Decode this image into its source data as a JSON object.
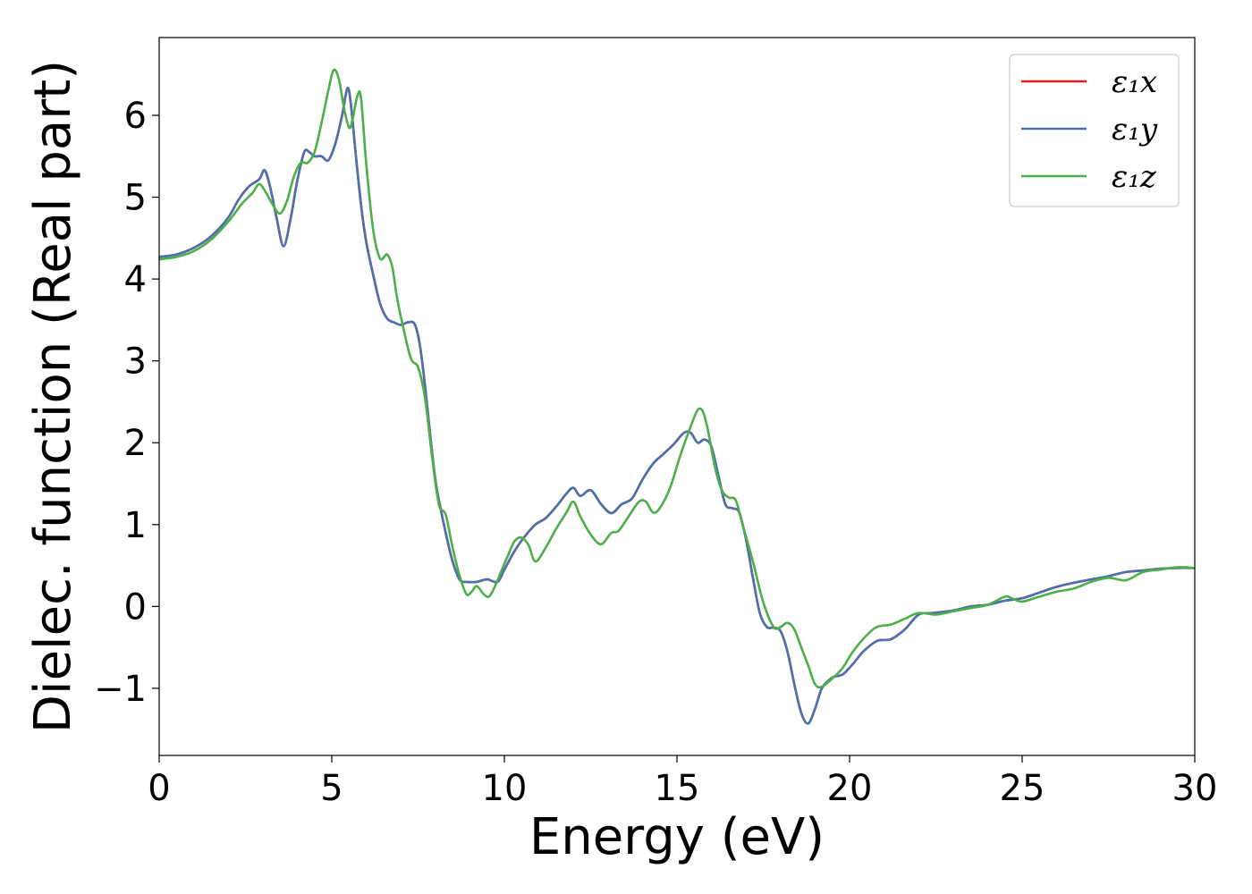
{
  "chart_data": {
    "type": "line",
    "title": "",
    "xlabel": "Energy (eV)",
    "ylabel": "Dielec. function (Real part)",
    "xlim": [
      0,
      30
    ],
    "ylim": [
      -1.82,
      6.95
    ],
    "xticks": [
      0,
      5,
      10,
      15,
      20,
      25,
      30
    ],
    "yticks": [
      -1,
      0,
      1,
      2,
      3,
      4,
      5,
      6
    ],
    "xtick_labels": [
      "0",
      "5",
      "10",
      "15",
      "20",
      "25",
      "30"
    ],
    "ytick_labels": [
      "−1",
      "0",
      "1",
      "2",
      "3",
      "4",
      "5",
      "6"
    ],
    "grid": false,
    "legend_position": "top-right",
    "series": [
      {
        "name": "ε₁x",
        "color": "#e41a1c",
        "x": [
          0,
          0.5,
          1.0,
          1.5,
          2.0,
          2.3,
          2.6,
          2.9,
          3.05,
          3.2,
          3.4,
          3.6,
          3.8,
          4.0,
          4.2,
          4.35,
          4.5,
          4.7,
          4.9,
          5.1,
          5.3,
          5.45,
          5.55,
          5.7,
          5.85,
          6.0,
          6.2,
          6.4,
          6.6,
          6.8,
          7.0,
          7.2,
          7.4,
          7.55,
          7.7,
          7.85,
          8.0,
          8.15,
          8.3,
          8.5,
          8.7,
          8.9,
          9.2,
          9.5,
          9.8,
          10.0,
          10.3,
          10.6,
          10.9,
          11.2,
          11.5,
          11.8,
          12.0,
          12.2,
          12.5,
          12.8,
          13.1,
          13.4,
          13.7,
          14.0,
          14.3,
          14.6,
          14.9,
          15.2,
          15.4,
          15.6,
          15.8,
          16.0,
          16.2,
          16.4,
          16.6,
          16.8,
          17.0,
          17.2,
          17.4,
          17.6,
          17.8,
          18.0,
          18.2,
          18.4,
          18.6,
          18.8,
          19.0,
          19.2,
          19.5,
          19.8,
          20.1,
          20.4,
          20.8,
          21.2,
          21.6,
          22.0,
          22.4,
          23.0,
          23.5,
          24.0,
          24.5,
          25.0,
          25.5,
          26.0,
          26.5,
          27.0,
          27.5,
          28.0,
          28.5,
          29.0,
          29.5,
          30.0
        ],
        "values": [
          4.27,
          4.3,
          4.38,
          4.52,
          4.75,
          4.97,
          5.13,
          5.22,
          5.33,
          5.15,
          4.75,
          4.4,
          4.72,
          5.2,
          5.55,
          5.55,
          5.5,
          5.5,
          5.45,
          5.65,
          6.0,
          6.33,
          6.15,
          5.5,
          4.9,
          4.45,
          4.05,
          3.7,
          3.52,
          3.47,
          3.44,
          3.47,
          3.45,
          3.2,
          2.7,
          2.1,
          1.55,
          1.2,
          0.9,
          0.55,
          0.33,
          0.3,
          0.3,
          0.33,
          0.3,
          0.45,
          0.68,
          0.86,
          1.0,
          1.08,
          1.22,
          1.38,
          1.45,
          1.35,
          1.42,
          1.25,
          1.14,
          1.25,
          1.32,
          1.55,
          1.74,
          1.86,
          1.98,
          2.12,
          2.12,
          2.0,
          2.04,
          1.95,
          1.6,
          1.25,
          1.2,
          1.15,
          0.82,
          0.35,
          -0.08,
          -0.25,
          -0.26,
          -0.3,
          -0.55,
          -0.95,
          -1.3,
          -1.43,
          -1.25,
          -1.0,
          -0.87,
          -0.83,
          -0.7,
          -0.55,
          -0.42,
          -0.4,
          -0.28,
          -0.1,
          -0.08,
          -0.05,
          0.0,
          0.02,
          0.07,
          0.1,
          0.17,
          0.24,
          0.29,
          0.33,
          0.37,
          0.42,
          0.44,
          0.46,
          0.47,
          0.47
        ]
      },
      {
        "name": "ε₁y",
        "color": "#4a72ad",
        "x": [
          0,
          0.5,
          1.0,
          1.5,
          2.0,
          2.3,
          2.6,
          2.9,
          3.05,
          3.2,
          3.4,
          3.6,
          3.8,
          4.0,
          4.2,
          4.35,
          4.5,
          4.7,
          4.9,
          5.1,
          5.3,
          5.45,
          5.55,
          5.7,
          5.85,
          6.0,
          6.2,
          6.4,
          6.6,
          6.8,
          7.0,
          7.2,
          7.4,
          7.55,
          7.7,
          7.85,
          8.0,
          8.15,
          8.3,
          8.5,
          8.7,
          8.9,
          9.2,
          9.5,
          9.8,
          10.0,
          10.3,
          10.6,
          10.9,
          11.2,
          11.5,
          11.8,
          12.0,
          12.2,
          12.5,
          12.8,
          13.1,
          13.4,
          13.7,
          14.0,
          14.3,
          14.6,
          14.9,
          15.2,
          15.4,
          15.6,
          15.8,
          16.0,
          16.2,
          16.4,
          16.6,
          16.8,
          17.0,
          17.2,
          17.4,
          17.6,
          17.8,
          18.0,
          18.2,
          18.4,
          18.6,
          18.8,
          19.0,
          19.2,
          19.5,
          19.8,
          20.1,
          20.4,
          20.8,
          21.2,
          21.6,
          22.0,
          22.4,
          23.0,
          23.5,
          24.0,
          24.5,
          25.0,
          25.5,
          26.0,
          26.5,
          27.0,
          27.5,
          28.0,
          28.5,
          29.0,
          29.5,
          30.0
        ],
        "values": [
          4.27,
          4.3,
          4.38,
          4.52,
          4.75,
          4.97,
          5.13,
          5.22,
          5.33,
          5.15,
          4.75,
          4.4,
          4.72,
          5.2,
          5.55,
          5.55,
          5.5,
          5.5,
          5.45,
          5.65,
          6.0,
          6.33,
          6.15,
          5.5,
          4.9,
          4.45,
          4.05,
          3.7,
          3.52,
          3.47,
          3.44,
          3.47,
          3.45,
          3.2,
          2.7,
          2.1,
          1.55,
          1.2,
          0.9,
          0.55,
          0.33,
          0.3,
          0.3,
          0.33,
          0.3,
          0.45,
          0.68,
          0.86,
          1.0,
          1.08,
          1.22,
          1.38,
          1.45,
          1.35,
          1.42,
          1.25,
          1.14,
          1.25,
          1.32,
          1.55,
          1.74,
          1.86,
          1.98,
          2.12,
          2.12,
          2.0,
          2.04,
          1.95,
          1.6,
          1.25,
          1.2,
          1.15,
          0.82,
          0.35,
          -0.08,
          -0.25,
          -0.26,
          -0.3,
          -0.55,
          -0.95,
          -1.3,
          -1.43,
          -1.25,
          -1.0,
          -0.87,
          -0.83,
          -0.7,
          -0.55,
          -0.42,
          -0.4,
          -0.28,
          -0.1,
          -0.08,
          -0.05,
          0.0,
          0.02,
          0.07,
          0.1,
          0.17,
          0.24,
          0.29,
          0.33,
          0.37,
          0.42,
          0.44,
          0.46,
          0.47,
          0.47
        ]
      },
      {
        "name": "ε₁z",
        "color": "#4daf4a",
        "x": [
          0,
          0.5,
          1.0,
          1.5,
          2.0,
          2.4,
          2.7,
          2.9,
          3.1,
          3.3,
          3.5,
          3.7,
          3.9,
          4.1,
          4.3,
          4.5,
          4.7,
          4.9,
          5.05,
          5.2,
          5.35,
          5.5,
          5.6,
          5.75,
          5.85,
          6.0,
          6.2,
          6.4,
          6.6,
          6.75,
          6.9,
          7.1,
          7.3,
          7.5,
          7.7,
          7.9,
          8.1,
          8.3,
          8.5,
          8.7,
          8.9,
          9.05,
          9.2,
          9.4,
          9.55,
          9.7,
          9.9,
          10.1,
          10.3,
          10.5,
          10.7,
          10.9,
          11.2,
          11.5,
          11.8,
          12.0,
          12.2,
          12.5,
          12.8,
          13.1,
          13.3,
          13.6,
          13.9,
          14.1,
          14.3,
          14.5,
          14.8,
          15.1,
          15.4,
          15.6,
          15.75,
          15.9,
          16.1,
          16.3,
          16.5,
          16.7,
          16.9,
          17.2,
          17.5,
          17.8,
          18.0,
          18.2,
          18.4,
          18.6,
          18.8,
          19.0,
          19.2,
          19.5,
          19.8,
          20.1,
          20.5,
          20.8,
          21.2,
          21.6,
          22.0,
          22.5,
          23.0,
          23.5,
          24.0,
          24.5,
          24.7,
          25.0,
          25.5,
          26.0,
          26.5,
          27.0,
          27.5,
          28.0,
          28.5,
          29.0,
          29.5,
          30.0
        ],
        "values": [
          4.24,
          4.27,
          4.34,
          4.48,
          4.7,
          4.92,
          5.05,
          5.16,
          5.05,
          4.9,
          4.8,
          4.95,
          5.25,
          5.42,
          5.42,
          5.55,
          5.9,
          6.3,
          6.55,
          6.45,
          6.1,
          5.85,
          5.95,
          6.25,
          6.2,
          5.4,
          4.6,
          4.25,
          4.3,
          4.15,
          3.75,
          3.35,
          3.02,
          2.92,
          2.55,
          1.85,
          1.25,
          1.12,
          0.72,
          0.38,
          0.15,
          0.18,
          0.25,
          0.15,
          0.12,
          0.22,
          0.42,
          0.62,
          0.8,
          0.84,
          0.75,
          0.55,
          0.72,
          0.95,
          1.15,
          1.28,
          1.1,
          0.88,
          0.76,
          0.9,
          0.92,
          1.1,
          1.28,
          1.28,
          1.15,
          1.2,
          1.45,
          1.85,
          2.2,
          2.4,
          2.38,
          2.15,
          1.7,
          1.42,
          1.33,
          1.3,
          1.0,
          0.55,
          0.05,
          -0.25,
          -0.25,
          -0.2,
          -0.28,
          -0.5,
          -0.72,
          -0.95,
          -0.98,
          -0.88,
          -0.75,
          -0.55,
          -0.35,
          -0.25,
          -0.22,
          -0.15,
          -0.08,
          -0.1,
          -0.06,
          -0.02,
          0.02,
          0.12,
          0.1,
          0.06,
          0.12,
          0.18,
          0.22,
          0.3,
          0.35,
          0.32,
          0.42,
          0.45,
          0.48,
          0.47
        ]
      }
    ]
  }
}
